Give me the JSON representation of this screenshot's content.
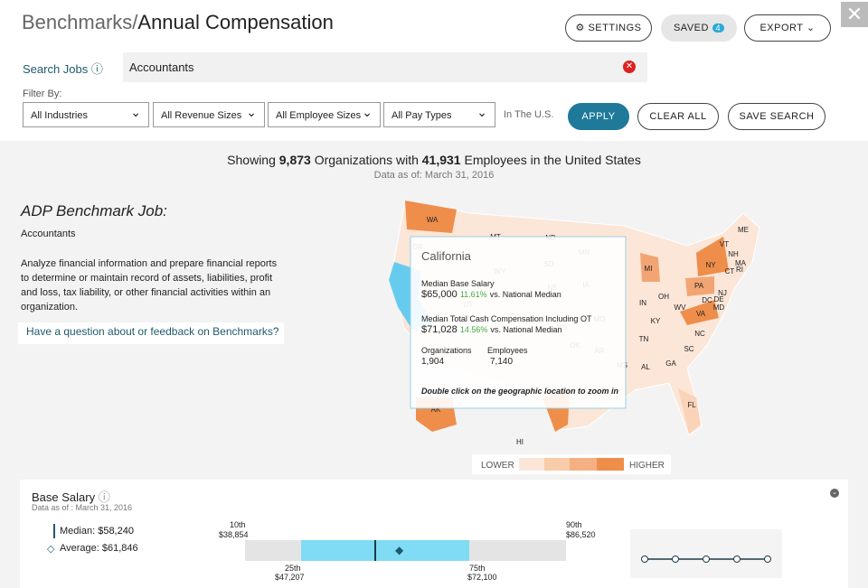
{
  "header": {
    "title_prefix": "Benchmarks/",
    "title": "Annual Compensation",
    "settings": "SETTINGS",
    "saved": "SAVED",
    "saved_count": "4",
    "export": "EXPORT"
  },
  "search": {
    "label": "Search Jobs",
    "value": "Accountants"
  },
  "filters": {
    "label": "Filter By:",
    "dropdowns": [
      "All Industries",
      "All Revenue Sizes",
      "All Employee Sizes",
      "All Pay Types"
    ],
    "region": "In The U.S.",
    "apply": "APPLY",
    "clear": "CLEAR ALL",
    "save": "SAVE SEARCH"
  },
  "summary": {
    "prefix": "Showing",
    "organizations": "9,873",
    "middle": "Organizations with",
    "employees": "41,931",
    "suffix": "Employees in the United States",
    "date_label": "Data as of:",
    "date": "March 31, 2016"
  },
  "job": {
    "heading": "ADP Benchmark Job:",
    "name": "Accountants",
    "description": "Analyze financial information and prepare financial reports to determine or maintain record of assets, liabilities, profit and loss, tax liability, or other financial activities within an organization.",
    "link": "Have a question about or feedback on Benchmarks?"
  },
  "map": {
    "states": [
      "WA",
      "MT",
      "ND",
      "MN",
      "OR",
      "SD",
      "WY",
      "NE",
      "IA",
      "UT",
      "CO",
      "KS",
      "MO",
      "OK",
      "AR",
      "MS",
      "AL",
      "GA",
      "SC",
      "NC",
      "TN",
      "KY",
      "VA",
      "WV",
      "OH",
      "IN",
      "MI",
      "PA",
      "NY",
      "VT",
      "NH",
      "ME",
      "MA",
      "CT",
      "RI",
      "NJ",
      "DC",
      "DE",
      "MD",
      "FL",
      "AK",
      "HI"
    ],
    "tooltip": {
      "title": "California",
      "base_label": "Median Base Salary",
      "base_value": "$65,000",
      "base_pct": "11.61%",
      "base_vs": "vs. National Median",
      "total_label": "Median Total Cash Compensation Including OT",
      "total_value": "$71,028",
      "total_pct": "14.56%",
      "total_vs": "vs. National Median",
      "org_label": "Organizations",
      "org_value": "1,904",
      "emp_label": "Employees",
      "emp_value": "7,140",
      "hint": "Double click on the geographic location to zoom in"
    },
    "legend": {
      "low": "LOWER",
      "high": "HIGHER"
    }
  },
  "base_salary": {
    "title": "Base Salary",
    "date": "Data as of : March 31, 2016",
    "median_label": "Median:",
    "median": "$58,240",
    "average_label": "Average:",
    "average": "$61,846",
    "p10_label": "10th",
    "p10": "$38,854",
    "p25_label": "25th",
    "p25": "$47,207",
    "p75_label": "75th",
    "p75": "$72,100",
    "p90_label": "90th",
    "p90": "$86,520"
  }
}
